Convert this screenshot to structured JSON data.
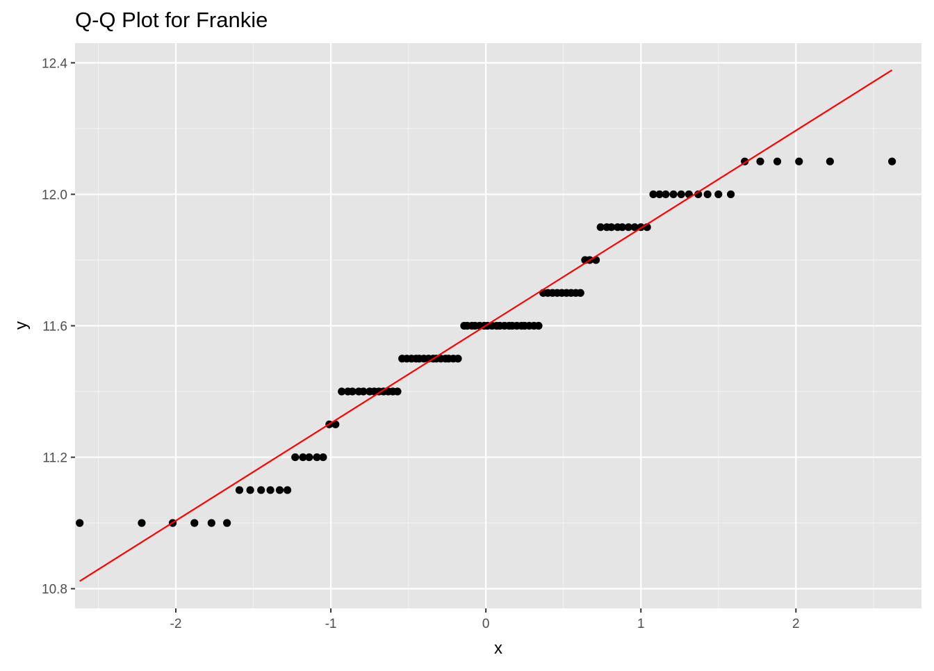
{
  "colors": {
    "panel_background": "#e5e5e5",
    "grid_major": "#ffffff",
    "grid_minor": "#f2f2f2",
    "points": "#000000",
    "reference_line": "#ff0000",
    "tick_marks": "#333333"
  },
  "chart_data": {
    "type": "scatter",
    "title": "Q-Q Plot for Frankie",
    "xlabel": "x",
    "ylabel": "y",
    "xlim": [
      -2.65,
      2.81
    ],
    "ylim": [
      10.74,
      12.46
    ],
    "x_ticks": [
      -2,
      -1,
      0,
      1,
      2
    ],
    "x_tick_labels": [
      "-2",
      "-1",
      "0",
      "1",
      "2"
    ],
    "y_ticks": [
      10.8,
      11.2,
      11.6,
      12.0,
      12.4
    ],
    "y_tick_labels": [
      "10.8",
      "11.2",
      "11.6",
      "12.0",
      "12.4"
    ],
    "grid": true,
    "legend": "none",
    "points": [
      {
        "x": -2.62,
        "y": 11.0
      },
      {
        "x": -2.22,
        "y": 11.0
      },
      {
        "x": -2.02,
        "y": 11.0
      },
      {
        "x": -1.88,
        "y": 11.0
      },
      {
        "x": -1.77,
        "y": 11.0
      },
      {
        "x": -1.67,
        "y": 11.0
      },
      {
        "x": -1.59,
        "y": 11.1
      },
      {
        "x": -1.52,
        "y": 11.1
      },
      {
        "x": -1.45,
        "y": 11.1
      },
      {
        "x": -1.39,
        "y": 11.1
      },
      {
        "x": -1.33,
        "y": 11.1
      },
      {
        "x": -1.28,
        "y": 11.1
      },
      {
        "x": -1.23,
        "y": 11.2
      },
      {
        "x": -1.18,
        "y": 11.2
      },
      {
        "x": -1.14,
        "y": 11.2
      },
      {
        "x": -1.09,
        "y": 11.2
      },
      {
        "x": -1.05,
        "y": 11.2
      },
      {
        "x": -1.01,
        "y": 11.3
      },
      {
        "x": -0.97,
        "y": 11.3
      },
      {
        "x": -0.93,
        "y": 11.4
      },
      {
        "x": -0.89,
        "y": 11.4
      },
      {
        "x": -0.86,
        "y": 11.4
      },
      {
        "x": -0.82,
        "y": 11.4
      },
      {
        "x": -0.79,
        "y": 11.4
      },
      {
        "x": -0.75,
        "y": 11.4
      },
      {
        "x": -0.72,
        "y": 11.4
      },
      {
        "x": -0.69,
        "y": 11.4
      },
      {
        "x": -0.66,
        "y": 11.4
      },
      {
        "x": -0.63,
        "y": 11.4
      },
      {
        "x": -0.6,
        "y": 11.4
      },
      {
        "x": -0.57,
        "y": 11.4
      },
      {
        "x": -0.54,
        "y": 11.5
      },
      {
        "x": -0.51,
        "y": 11.5
      },
      {
        "x": -0.48,
        "y": 11.5
      },
      {
        "x": -0.45,
        "y": 11.5
      },
      {
        "x": -0.43,
        "y": 11.5
      },
      {
        "x": -0.4,
        "y": 11.5
      },
      {
        "x": -0.37,
        "y": 11.5
      },
      {
        "x": -0.34,
        "y": 11.5
      },
      {
        "x": -0.32,
        "y": 11.5
      },
      {
        "x": -0.29,
        "y": 11.5
      },
      {
        "x": -0.26,
        "y": 11.5
      },
      {
        "x": -0.24,
        "y": 11.5
      },
      {
        "x": -0.21,
        "y": 11.5
      },
      {
        "x": -0.18,
        "y": 11.5
      },
      {
        "x": -0.14,
        "y": 11.6
      },
      {
        "x": -0.12,
        "y": 11.6
      },
      {
        "x": -0.09,
        "y": 11.6
      },
      {
        "x": -0.07,
        "y": 11.6
      },
      {
        "x": -0.04,
        "y": 11.6
      },
      {
        "x": -0.01,
        "y": 11.6
      },
      {
        "x": 0.01,
        "y": 11.6
      },
      {
        "x": 0.04,
        "y": 11.6
      },
      {
        "x": 0.07,
        "y": 11.6
      },
      {
        "x": 0.09,
        "y": 11.6
      },
      {
        "x": 0.12,
        "y": 11.6
      },
      {
        "x": 0.15,
        "y": 11.6
      },
      {
        "x": 0.17,
        "y": 11.6
      },
      {
        "x": 0.2,
        "y": 11.6
      },
      {
        "x": 0.23,
        "y": 11.6
      },
      {
        "x": 0.25,
        "y": 11.6
      },
      {
        "x": 0.28,
        "y": 11.6
      },
      {
        "x": 0.31,
        "y": 11.6
      },
      {
        "x": 0.34,
        "y": 11.6
      },
      {
        "x": 0.37,
        "y": 11.7
      },
      {
        "x": 0.4,
        "y": 11.7
      },
      {
        "x": 0.43,
        "y": 11.7
      },
      {
        "x": 0.46,
        "y": 11.7
      },
      {
        "x": 0.49,
        "y": 11.7
      },
      {
        "x": 0.52,
        "y": 11.7
      },
      {
        "x": 0.55,
        "y": 11.7
      },
      {
        "x": 0.58,
        "y": 11.7
      },
      {
        "x": 0.61,
        "y": 11.7
      },
      {
        "x": 0.64,
        "y": 11.8
      },
      {
        "x": 0.67,
        "y": 11.8
      },
      {
        "x": 0.71,
        "y": 11.8
      },
      {
        "x": 0.74,
        "y": 11.9
      },
      {
        "x": 0.78,
        "y": 11.9
      },
      {
        "x": 0.81,
        "y": 11.9
      },
      {
        "x": 0.85,
        "y": 11.9
      },
      {
        "x": 0.88,
        "y": 11.9
      },
      {
        "x": 0.92,
        "y": 11.9
      },
      {
        "x": 0.96,
        "y": 11.9
      },
      {
        "x": 1.0,
        "y": 11.9
      },
      {
        "x": 1.04,
        "y": 11.9
      },
      {
        "x": 1.08,
        "y": 12.0
      },
      {
        "x": 1.12,
        "y": 12.0
      },
      {
        "x": 1.16,
        "y": 12.0
      },
      {
        "x": 1.21,
        "y": 12.0
      },
      {
        "x": 1.26,
        "y": 12.0
      },
      {
        "x": 1.31,
        "y": 12.0
      },
      {
        "x": 1.37,
        "y": 12.0
      },
      {
        "x": 1.43,
        "y": 12.0
      },
      {
        "x": 1.5,
        "y": 12.0
      },
      {
        "x": 1.58,
        "y": 12.0
      },
      {
        "x": 1.67,
        "y": 12.1
      },
      {
        "x": 1.77,
        "y": 12.1
      },
      {
        "x": 1.88,
        "y": 12.1
      },
      {
        "x": 2.02,
        "y": 12.1
      },
      {
        "x": 2.22,
        "y": 12.1
      },
      {
        "x": 2.62,
        "y": 12.1
      }
    ],
    "reference_line": {
      "x1": -2.62,
      "y1": 10.823,
      "x2": 2.62,
      "y2": 12.378
    }
  }
}
